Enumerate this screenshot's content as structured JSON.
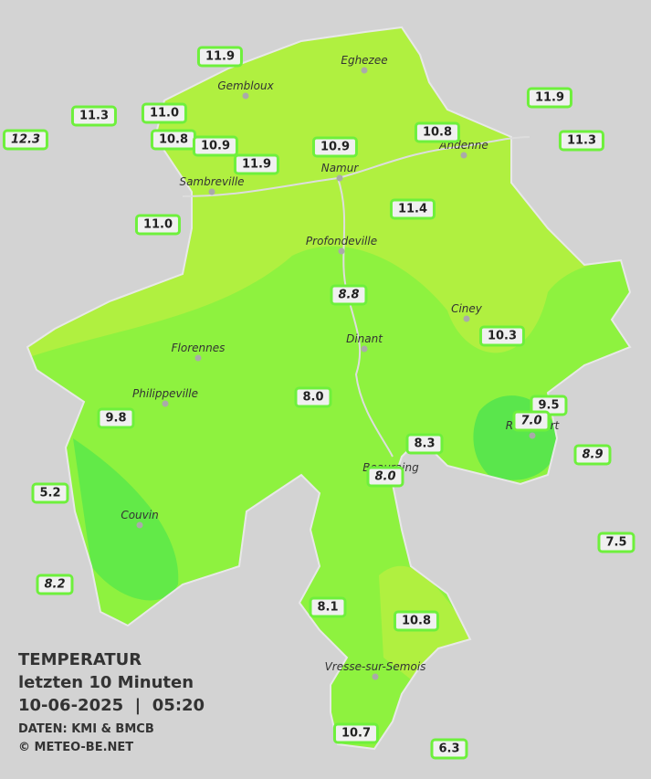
{
  "legend": {
    "title": "TEMPERATUR",
    "subtitle": "letzten 10 Minuten",
    "datetime": "10-06-2025  |  05:20",
    "source": "DATEN: KMI & BMCB",
    "copyright": "© METEO-BE.NET"
  },
  "towns": [
    "Eghezee",
    "Gembloux",
    "Andenne",
    "Namur",
    "Sambreville",
    "Profondeville",
    "Ciney",
    "Florennes",
    "Dinant",
    "Philippeville",
    "Rochefort",
    "Beauraing",
    "Couvin",
    "Vresse-sur-Semois"
  ],
  "stations": [
    {
      "label": "11.9"
    },
    {
      "label": "11.3"
    },
    {
      "label": "11.0"
    },
    {
      "label": "12.3",
      "italic": true
    },
    {
      "label": "10.8"
    },
    {
      "label": "10.9"
    },
    {
      "label": "11.9"
    },
    {
      "label": "10.9"
    },
    {
      "label": "10.8"
    },
    {
      "label": "11.9"
    },
    {
      "label": "11.3"
    },
    {
      "label": "11.0"
    },
    {
      "label": "11.4"
    },
    {
      "label": "8.8",
      "italic": true
    },
    {
      "label": "10.3"
    },
    {
      "label": "8.0"
    },
    {
      "label": "9.8"
    },
    {
      "label": "9.5"
    },
    {
      "label": "7.0",
      "italic": true
    },
    {
      "label": "8.3"
    },
    {
      "label": "8.9",
      "italic": true
    },
    {
      "label": "8.0",
      "italic": true
    },
    {
      "label": "5.2"
    },
    {
      "label": "7.5"
    },
    {
      "label": "8.2",
      "italic": true
    },
    {
      "label": "8.1"
    },
    {
      "label": "10.8"
    },
    {
      "label": "10.7"
    },
    {
      "label": "6.3"
    }
  ]
}
